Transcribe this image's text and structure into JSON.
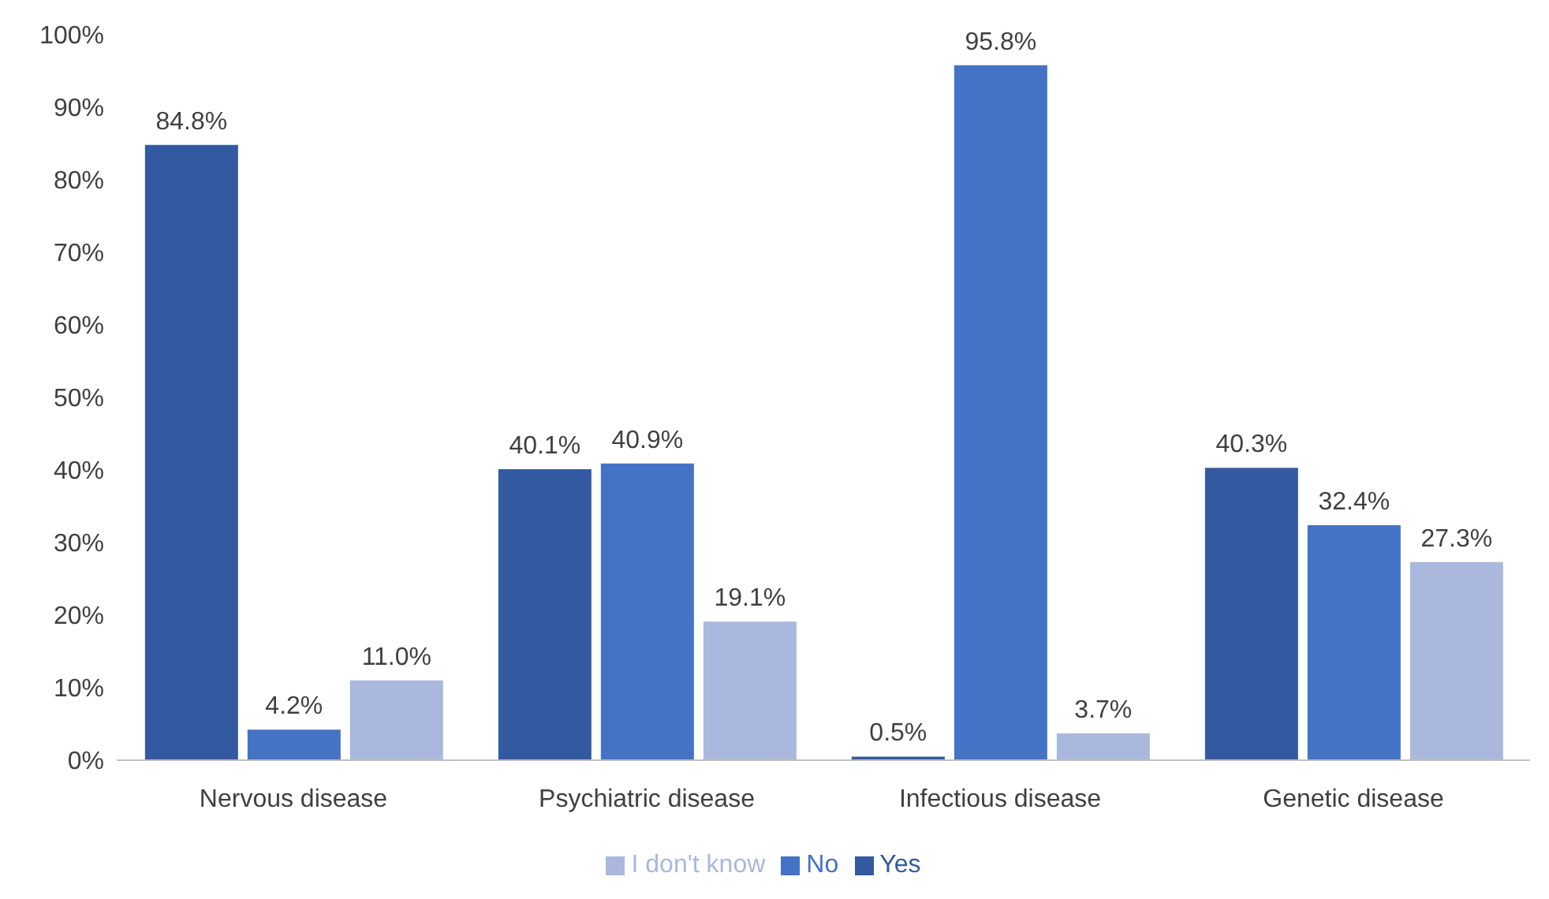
{
  "chart_data": {
    "type": "bar",
    "categories": [
      "Nervous disease",
      "Psychiatric disease",
      "Infectious disease",
      "Genetic disease"
    ],
    "series": [
      {
        "name": "Yes",
        "color": "#335aa1",
        "values": [
          84.8,
          40.1,
          0.5,
          40.3
        ],
        "value_labels": [
          "84.8%",
          "40.1%",
          "0.5%",
          "40.3%"
        ]
      },
      {
        "name": "No",
        "color": "#4472c4",
        "values": [
          4.2,
          40.9,
          95.8,
          32.4
        ],
        "value_labels": [
          "4.2%",
          "40.9%",
          "95.8%",
          "32.4%"
        ]
      },
      {
        "name": "I don't know",
        "color": "#a9b8dc",
        "values": [
          11.0,
          19.1,
          3.7,
          27.3
        ],
        "value_labels": [
          "11.0%",
          "19.1%",
          "3.7%",
          "27.3%"
        ]
      }
    ],
    "ylim": [
      0,
      100
    ],
    "yticks": [
      {
        "value": 0,
        "label": "0%"
      },
      {
        "value": 10,
        "label": "10%"
      },
      {
        "value": 20,
        "label": "20%"
      },
      {
        "value": 30,
        "label": "30%"
      },
      {
        "value": 40,
        "label": "40%"
      },
      {
        "value": 50,
        "label": "50%"
      },
      {
        "value": 60,
        "label": "60%"
      },
      {
        "value": 70,
        "label": "70%"
      },
      {
        "value": 80,
        "label": "80%"
      },
      {
        "value": 90,
        "label": "90%"
      },
      {
        "value": 100,
        "label": "100%"
      }
    ],
    "grid": false,
    "legend": "bottom"
  }
}
